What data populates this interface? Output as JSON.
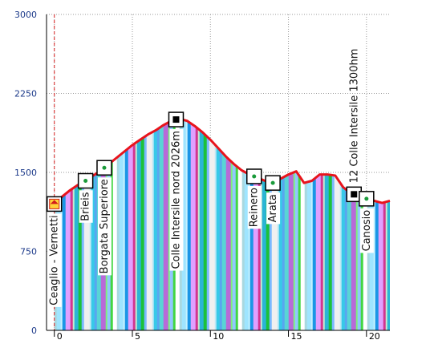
{
  "chart_data": {
    "type": "area",
    "title": "",
    "xlabel": "",
    "ylabel": "",
    "xlim": [
      -0.5,
      21.5
    ],
    "ylim": [
      0,
      3000
    ],
    "yticks": [
      0,
      750,
      1500,
      2250,
      3000
    ],
    "xticks": [
      0,
      5,
      10,
      15,
      20
    ],
    "grid": true,
    "colors": {
      "profile_line": "#e8141c",
      "start_line": "#d92020",
      "y_axis_text": "#1c3a8a",
      "grid": "#9a9a9a"
    },
    "series": [
      {
        "values_x": [
          0,
          0.5,
          1,
          1.5,
          2,
          2.5,
          3,
          3.5,
          4,
          4.5,
          5,
          5.5,
          6,
          6.5,
          7,
          7.5,
          8,
          8.5,
          9,
          9.5,
          10,
          10.5,
          11,
          11.5,
          12,
          12.5,
          13,
          13.5,
          14,
          14.5,
          15,
          15.5,
          16,
          16.5,
          17,
          17.5,
          18,
          18.5,
          19,
          19.5,
          20,
          20.5,
          21,
          21.5
        ],
        "values_y": [
          1200,
          1270,
          1330,
          1380,
          1420,
          1470,
          1520,
          1580,
          1640,
          1700,
          1760,
          1810,
          1860,
          1900,
          1950,
          1990,
          2010,
          1990,
          1940,
          1880,
          1810,
          1730,
          1650,
          1580,
          1520,
          1480,
          1450,
          1420,
          1400,
          1440,
          1480,
          1510,
          1400,
          1420,
          1480,
          1480,
          1470,
          1360,
          1300,
          1280,
          1250,
          1230,
          1210,
          1230
        ]
      }
    ],
    "waypoints": [
      {
        "x": 0,
        "y": 1200,
        "label": "Ceaglio - Vernetti",
        "icon": "home-icon"
      },
      {
        "x": 2,
        "y": 1420,
        "label": "Brieis",
        "icon": "waypoint-icon"
      },
      {
        "x": 3.2,
        "y": 1520,
        "label": "Borgata Superiore",
        "icon": "waypoint-icon"
      },
      {
        "x": 7.8,
        "y": 1990,
        "label": "Colle Intersile nord 2026m",
        "icon": "pass-icon"
      },
      {
        "x": 12.8,
        "y": 1470,
        "label": "Reinero",
        "icon": "waypoint-icon"
      },
      {
        "x": 14,
        "y": 1380,
        "label": "Arata",
        "icon": "waypoint-icon"
      },
      {
        "x": 19.2,
        "y": 1380,
        "label": "12 Colle Intersile 1300hm",
        "icon": "pass-icon"
      },
      {
        "x": 20,
        "y": 1230,
        "label": "Canosio",
        "icon": "waypoint-icon"
      }
    ],
    "stripes": [
      "#a8d8e0",
      "#1a96e6",
      "#c6ecd0",
      "#7ab8ff",
      "#37c9e8",
      "#b86ad8",
      "#42d642",
      "#9fe5ff",
      "#e0a0ff",
      "#2ab5d6",
      "#f0f0f0",
      "#59a6f0",
      "#7ef07e",
      "#ffffff",
      "#c5f2ff",
      "#d23590",
      "#1cc13a",
      "#bde8f5",
      "#58d5d5",
      "#91c7ff"
    ]
  }
}
